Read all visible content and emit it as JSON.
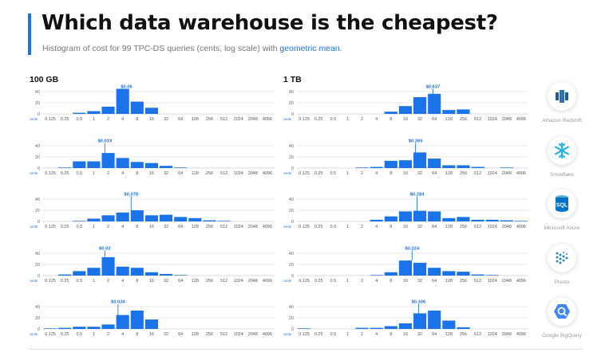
{
  "header": {
    "title": "Which data warehouse is the cheapest?",
    "subtitle_prefix": "Histogram of cost for 99 TPC-DS queries (cents, log scale) with ",
    "subtitle_highlight": "geometric mean",
    "subtitle_suffix": "."
  },
  "columns": [
    "100 GB",
    "1 TB"
  ],
  "colors": {
    "bar": "#1a73e8",
    "accent": "#1a73e8",
    "grid": "#e3e3e3",
    "label": "#1a73e8"
  },
  "vendors": [
    {
      "name": "Amazon Redshift",
      "icon": "redshift-icon"
    },
    {
      "name": "Snowflake",
      "icon": "snowflake-icon"
    },
    {
      "name": "Microsoft Azure",
      "icon": "sql-icon"
    },
    {
      "name": "Presto",
      "icon": "presto-icon"
    },
    {
      "name": "Google BigQuery",
      "icon": "bigquery-icon"
    }
  ],
  "chart_data": [
    {
      "type": "bar",
      "panel": "100 GB",
      "vendor": "Amazon Redshift",
      "categories": [
        "0.125",
        "0.25",
        "0.5",
        "1",
        "2",
        "4",
        "8",
        "16",
        "32",
        "64",
        "128",
        "256",
        "512",
        "1024",
        "2048",
        "4096"
      ],
      "values": [
        0,
        0,
        2,
        5,
        13,
        45,
        22,
        11,
        0,
        0,
        0,
        0,
        0,
        0,
        0,
        0
      ],
      "mean_label": "$0.06",
      "mean_x": 4.8,
      "xlabel": "cents",
      "ylim": [
        0,
        50
      ],
      "yticks": [
        0,
        20,
        40
      ]
    },
    {
      "type": "bar",
      "panel": "100 GB",
      "vendor": "Snowflake",
      "categories": [
        "0.125",
        "0.25",
        "0.5",
        "1",
        "2",
        "4",
        "8",
        "16",
        "32",
        "64",
        "128",
        "256",
        "512",
        "1024",
        "2048",
        "4096"
      ],
      "values": [
        0,
        1,
        12,
        12,
        27,
        18,
        11,
        9,
        4,
        1,
        0,
        0,
        0,
        0,
        0,
        0
      ],
      "mean_label": "$0.019",
      "mean_x": 1.7,
      "xlabel": "cents",
      "ylim": [
        0,
        50
      ],
      "yticks": [
        0,
        20,
        40
      ]
    },
    {
      "type": "bar",
      "panel": "100 GB",
      "vendor": "Microsoft Azure",
      "categories": [
        "0.125",
        "0.25",
        "0.5",
        "1",
        "2",
        "4",
        "8",
        "16",
        "32",
        "64",
        "128",
        "256",
        "512",
        "1024",
        "2048",
        "4096"
      ],
      "values": [
        0,
        0,
        1,
        5,
        11,
        16,
        20,
        11,
        12,
        8,
        6,
        2,
        1,
        0,
        0,
        0
      ],
      "mean_label": "$0.078",
      "mean_x": 6,
      "xlabel": "cents",
      "ylim": [
        0,
        50
      ],
      "yticks": [
        0,
        20,
        40
      ]
    },
    {
      "type": "bar",
      "panel": "100 GB",
      "vendor": "Presto",
      "categories": [
        "0.125",
        "0.25",
        "0.5",
        "1",
        "2",
        "4",
        "8",
        "16",
        "32",
        "64",
        "128",
        "256",
        "512",
        "1024",
        "2048",
        "4096"
      ],
      "values": [
        0,
        2,
        8,
        14,
        33,
        16,
        14,
        6,
        3,
        1,
        0,
        0,
        0,
        0,
        0,
        0
      ],
      "mean_label": "$0.02",
      "mean_x": 1.7,
      "xlabel": "cents",
      "ylim": [
        0,
        50
      ],
      "yticks": [
        0,
        20,
        40
      ]
    },
    {
      "type": "bar",
      "panel": "100 GB",
      "vendor": "Google BigQuery",
      "categories": [
        "0.125",
        "0.25",
        "0.5",
        "1",
        "2",
        "4",
        "8",
        "16",
        "32",
        "64",
        "128",
        "256",
        "512",
        "1024",
        "2048",
        "4096"
      ],
      "values": [
        1,
        2,
        4,
        4,
        8,
        25,
        33,
        17,
        0,
        0,
        0,
        0,
        0,
        0,
        0,
        0
      ],
      "mean_label": "$0.034",
      "mean_x": 3.2,
      "xlabel": "cents",
      "ylim": [
        0,
        50
      ],
      "yticks": [
        0,
        20,
        40
      ]
    },
    {
      "type": "bar",
      "panel": "1 TB",
      "vendor": "Amazon Redshift",
      "categories": [
        "0.125",
        "0.25",
        "0.5",
        "1",
        "2",
        "4",
        "8",
        "16",
        "32",
        "64",
        "128",
        "256",
        "512",
        "1024",
        "2048",
        "4096"
      ],
      "values": [
        0,
        0,
        0,
        0,
        0,
        0,
        4,
        14,
        30,
        36,
        7,
        8,
        0,
        0,
        0,
        0
      ],
      "mean_label": "$0.637",
      "mean_x": 60,
      "xlabel": "cents",
      "ylim": [
        0,
        50
      ],
      "yticks": [
        0,
        20,
        40
      ]
    },
    {
      "type": "bar",
      "panel": "1 TB",
      "vendor": "Snowflake",
      "categories": [
        "0.125",
        "0.25",
        "0.5",
        "1",
        "2",
        "4",
        "8",
        "16",
        "32",
        "64",
        "128",
        "256",
        "512",
        "1024",
        "2048",
        "4096"
      ],
      "values": [
        0,
        0,
        0,
        0,
        1,
        2,
        13,
        14,
        28,
        17,
        5,
        5,
        2,
        0,
        1,
        0
      ],
      "mean_label": "$0.265",
      "mean_x": 26,
      "xlabel": "cents",
      "ylim": [
        0,
        50
      ],
      "yticks": [
        0,
        20,
        40
      ]
    },
    {
      "type": "bar",
      "panel": "1 TB",
      "vendor": "Microsoft Azure",
      "categories": [
        "0.125",
        "0.25",
        "0.5",
        "1",
        "2",
        "4",
        "8",
        "16",
        "32",
        "64",
        "128",
        "256",
        "512",
        "1024",
        "2048",
        "4096"
      ],
      "values": [
        0,
        0,
        0,
        0,
        0,
        3,
        9,
        18,
        19,
        18,
        6,
        8,
        3,
        3,
        2,
        1
      ],
      "mean_label": "$0.284",
      "mean_x": 28,
      "xlabel": "cents",
      "ylim": [
        0,
        50
      ],
      "yticks": [
        0,
        20,
        40
      ]
    },
    {
      "type": "bar",
      "panel": "1 TB",
      "vendor": "Presto",
      "categories": [
        "0.125",
        "0.25",
        "0.5",
        "1",
        "2",
        "4",
        "8",
        "16",
        "32",
        "64",
        "128",
        "256",
        "512",
        "1024",
        "2048",
        "4096"
      ],
      "values": [
        0,
        0,
        0,
        0,
        0,
        1,
        6,
        27,
        23,
        14,
        8,
        7,
        2,
        1,
        0,
        0
      ],
      "mean_label": "$0.224",
      "mean_x": 22,
      "xlabel": "cents",
      "ylim": [
        0,
        50
      ],
      "yticks": [
        0,
        20,
        40
      ]
    },
    {
      "type": "bar",
      "panel": "1 TB",
      "vendor": "Google BigQuery",
      "categories": [
        "0.125",
        "0.25",
        "0.5",
        "1",
        "2",
        "4",
        "8",
        "16",
        "32",
        "64",
        "128",
        "256",
        "512",
        "1024",
        "2048",
        "4096"
      ],
      "values": [
        1,
        0,
        0,
        0,
        2,
        2,
        5,
        10,
        28,
        33,
        15,
        3,
        0,
        0,
        0,
        0
      ],
      "mean_label": "$0.306",
      "mean_x": 30,
      "xlabel": "cents",
      "ylim": [
        0,
        50
      ],
      "yticks": [
        0,
        20,
        40
      ]
    }
  ]
}
